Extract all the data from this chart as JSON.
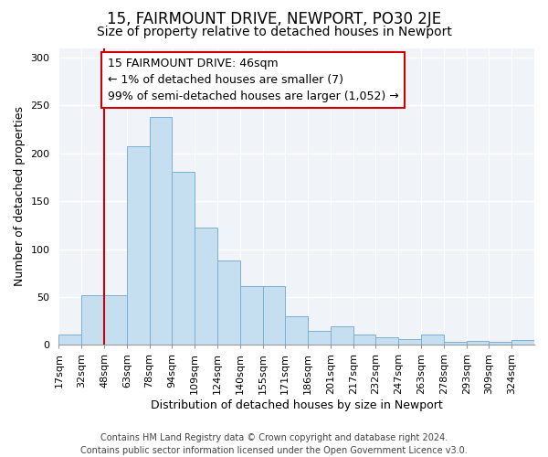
{
  "title": "15, FAIRMOUNT DRIVE, NEWPORT, PO30 2JE",
  "subtitle": "Size of property relative to detached houses in Newport",
  "xlabel": "Distribution of detached houses by size in Newport",
  "ylabel": "Number of detached properties",
  "bar_color": "#c6dff0",
  "bar_edge_color": "#7ab0d4",
  "bin_labels": [
    "17sqm",
    "32sqm",
    "48sqm",
    "63sqm",
    "78sqm",
    "94sqm",
    "109sqm",
    "124sqm",
    "140sqm",
    "155sqm",
    "171sqm",
    "186sqm",
    "201sqm",
    "217sqm",
    "232sqm",
    "247sqm",
    "263sqm",
    "278sqm",
    "293sqm",
    "309sqm",
    "324sqm"
  ],
  "bar_heights": [
    11,
    52,
    52,
    207,
    238,
    181,
    122,
    88,
    61,
    61,
    30,
    15,
    19,
    11,
    8,
    6,
    11,
    3,
    4,
    3,
    5
  ],
  "vline_x_index": 2,
  "vline_color": "#cc0000",
  "annotation_lines": [
    "15 FAIRMOUNT DRIVE: 46sqm",
    "← 1% of detached houses are smaller (7)",
    "99% of semi-detached houses are larger (1,052) →"
  ],
  "footer_line1": "Contains HM Land Registry data © Crown copyright and database right 2024.",
  "footer_line2": "Contains public sector information licensed under the Open Government Licence v3.0.",
  "ylim": [
    0,
    310
  ],
  "yticks": [
    0,
    50,
    100,
    150,
    200,
    250,
    300
  ],
  "title_fontsize": 12,
  "subtitle_fontsize": 10,
  "axis_label_fontsize": 9,
  "tick_fontsize": 8,
  "annotation_fontsize": 9,
  "footer_fontsize": 7
}
